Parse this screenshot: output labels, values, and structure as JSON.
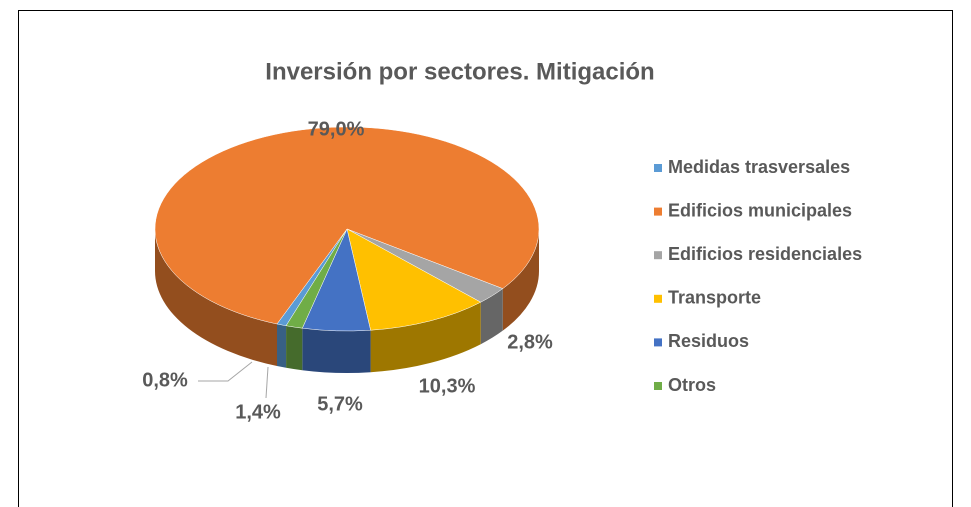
{
  "chart_data": {
    "type": "pie",
    "title": "Inversión por sectores. Mitigación",
    "categories": [
      "Medidas trasversales",
      "Edificios municipales",
      "Edificios residenciales",
      "Transporte",
      "Residuos",
      "Otros"
    ],
    "values": [
      0.8,
      79.0,
      2.8,
      10.3,
      5.7,
      1.4
    ],
    "value_labels": [
      "0,8%",
      "79,0%",
      "2,8%",
      "10,3%",
      "5,7%",
      "1,4%"
    ],
    "colors": [
      "#5b9bd5",
      "#ed7d31",
      "#a5a5a5",
      "#ffc000",
      "#4472c4",
      "#70ad47"
    ],
    "legend": "right"
  }
}
